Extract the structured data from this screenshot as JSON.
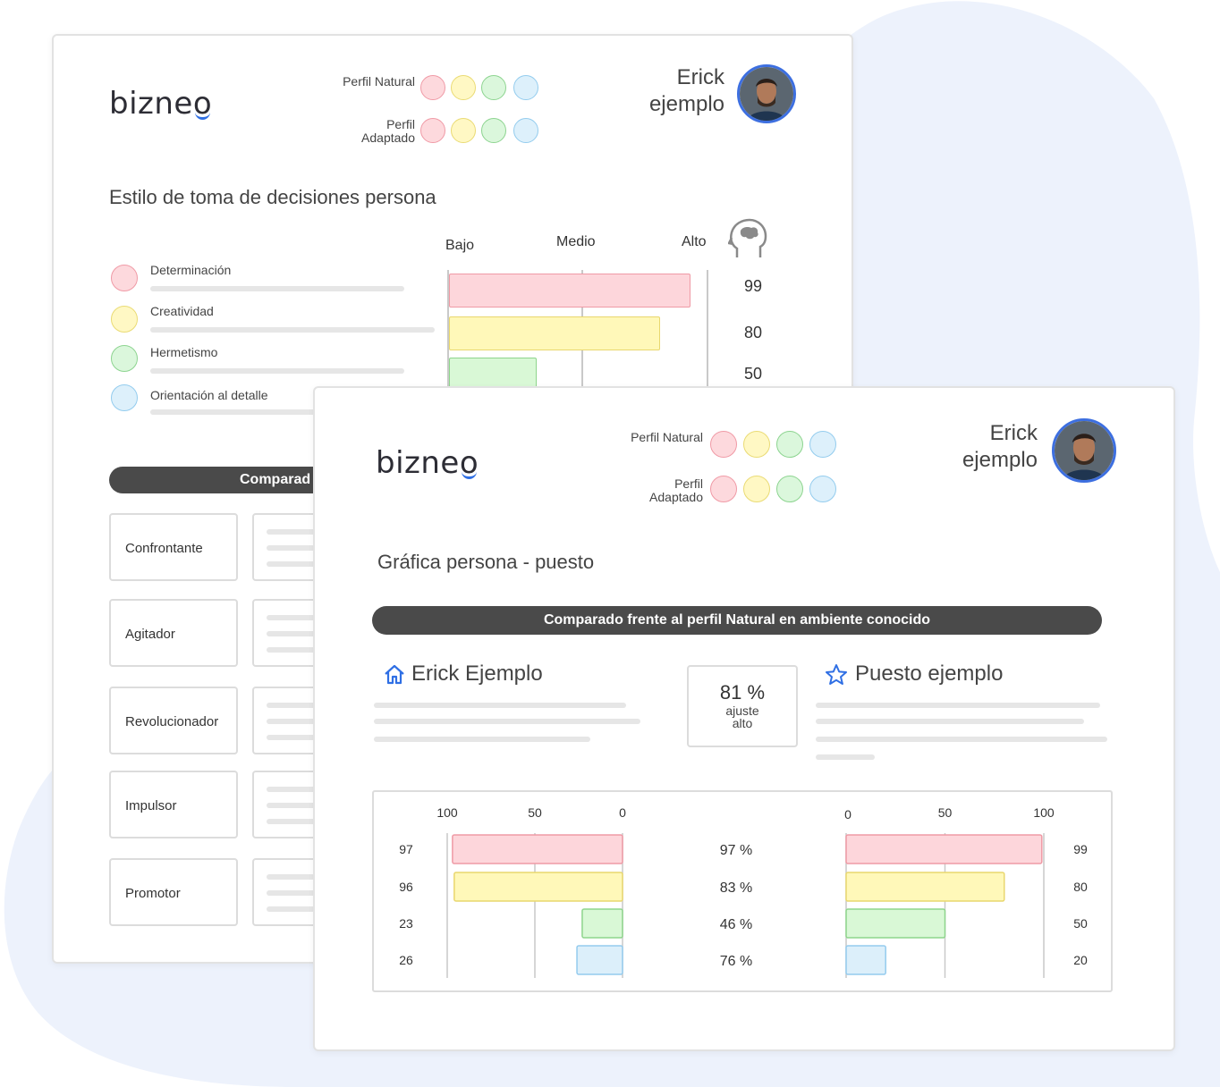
{
  "colors": {
    "accent": "#2f6fe4",
    "red": "#fdd6db",
    "yellow": "#fff8b9",
    "green": "#d9f8d6",
    "blue": "#dceffa",
    "pill": "#4a4a4a"
  },
  "back": {
    "logo": "bizneo",
    "legend": {
      "natural": "Perfil Natural",
      "adapted": "Perfil Adaptado"
    },
    "user": {
      "line1": "Erick",
      "line2": "ejemplo"
    },
    "title": "Estilo de toma de decisiones persona",
    "scale": {
      "low": "Bajo",
      "mid": "Medio",
      "high": "Alto",
      "icon": "head-brain-icon"
    },
    "traits": [
      {
        "label": "Determinación",
        "value": 99
      },
      {
        "label": "Creatividad",
        "value": 80
      },
      {
        "label": "Hermetismo",
        "value": 50
      },
      {
        "label": "Orientación al detalle"
      }
    ],
    "comparison_pill": "Comparad",
    "types": [
      "Confrontante",
      "Agitador",
      "Revolucionador",
      "Impulsor",
      "Promotor"
    ]
  },
  "front": {
    "logo": "bizneo",
    "legend": {
      "natural": "Perfil Natural",
      "adapted": "Perfil Adaptado"
    },
    "user": {
      "line1": "Erick",
      "line2": "ejemplo"
    },
    "title": "Gráfica persona -  puesto",
    "comparison_pill": "Comparado frente al perfil Natural en ambiente conocido",
    "person_heading": "Erick Ejemplo",
    "person_icon": "home-icon",
    "job_heading": "Puesto ejemplo",
    "job_icon": "star-icon",
    "fit": {
      "value": "81 %",
      "label_line1": "ajuste",
      "label_line2": "alto"
    }
  },
  "chart_data": {
    "type": "bar",
    "left_axis_ticks": [
      "100",
      "50",
      "0"
    ],
    "right_axis_ticks": [
      "0",
      "50",
      "100"
    ],
    "series": [
      {
        "values": [
          97,
          96,
          23,
          26
        ]
      },
      {
        "values": [
          99,
          80,
          50,
          20
        ]
      }
    ],
    "match_percent": [
      "97 %",
      "83 %",
      "46 %",
      "76 %"
    ],
    "xlim": [
      0,
      100
    ]
  }
}
